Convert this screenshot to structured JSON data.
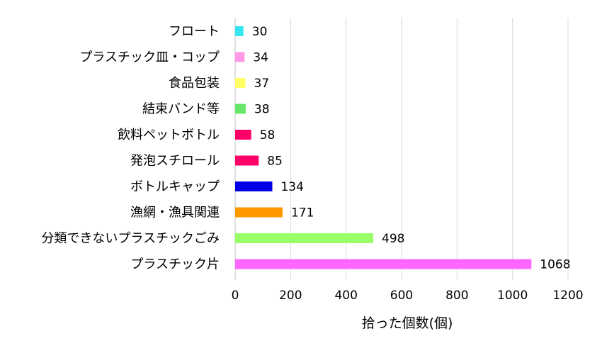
{
  "chart_data": {
    "type": "bar",
    "orientation": "horizontal",
    "categories": [
      "フロート",
      "プラスチック皿・コップ",
      "食品包装",
      "結束バンド等",
      "飲料ペットボトル",
      "発泡スチロール",
      "ボトルキャップ",
      "漁網・漁具関連",
      "分類できないプラスチックごみ",
      "プラスチック片"
    ],
    "values": [
      30,
      34,
      37,
      38,
      58,
      85,
      134,
      171,
      498,
      1068
    ],
    "value_labels": [
      "30",
      "34",
      "37",
      "38",
      "58",
      "85",
      "134",
      "171",
      "498",
      "1068"
    ],
    "colors": [
      "#33e6f0",
      "#ff99e6",
      "#ffff66",
      "#66e666",
      "#ff0066",
      "#ff0066",
      "#0000e6",
      "#ff9900",
      "#99ff66",
      "#ff66ff"
    ],
    "xlabel": "拾った個数(個)",
    "ylabel": "",
    "xlim": [
      0,
      1200
    ],
    "xticks": [
      "0",
      "200",
      "400",
      "600",
      "800",
      "1000",
      "1200"
    ],
    "grid": true,
    "legend": "none"
  }
}
